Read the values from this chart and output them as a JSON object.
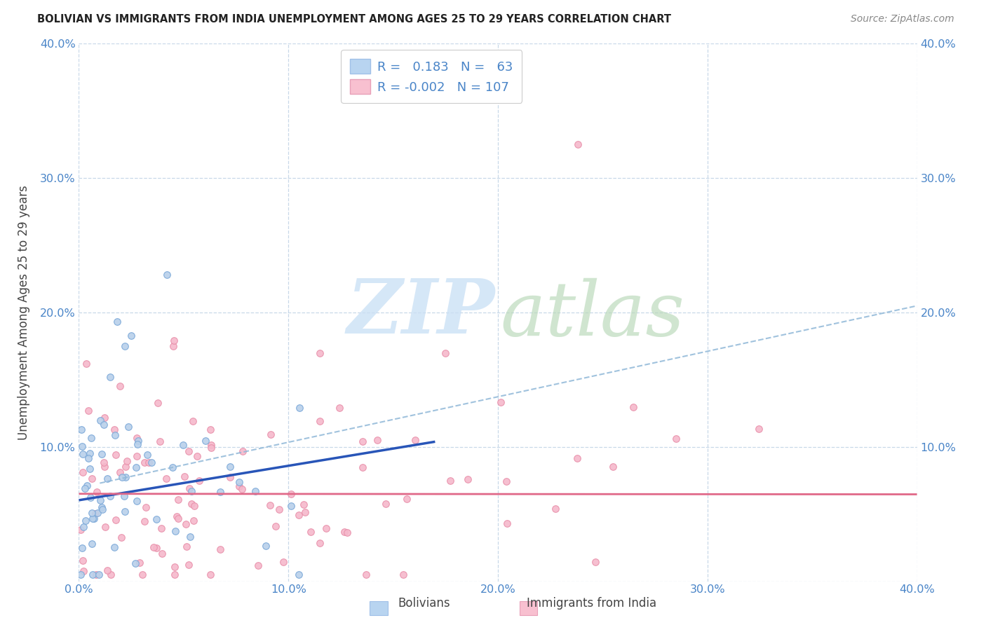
{
  "title": "BOLIVIAN VS IMMIGRANTS FROM INDIA UNEMPLOYMENT AMONG AGES 25 TO 29 YEARS CORRELATION CHART",
  "source": "Source: ZipAtlas.com",
  "ylabel": "Unemployment Among Ages 25 to 29 years",
  "xlim": [
    0.0,
    0.4
  ],
  "ylim": [
    0.0,
    0.4
  ],
  "bolivia_R": 0.183,
  "bolivia_N": 63,
  "india_R": -0.002,
  "india_N": 107,
  "bolivia_scatter_color": "#b8d0ea",
  "bolivia_edge_color": "#7aa8d8",
  "india_scatter_color": "#f5b8cb",
  "india_edge_color": "#e890aa",
  "bolivia_trend_color": "#2855b8",
  "india_trend_color": "#e06888",
  "dash_trend_color": "#90b8d8",
  "grid_color": "#c8d8e8",
  "tick_label_color": "#4a85c8",
  "title_color": "#222222",
  "source_color": "#888888",
  "watermark_zip_color": "#c8dff5",
  "watermark_atlas_color": "#b8d8b8",
  "legend_bolivia_label": "Bolivians",
  "legend_india_label": "Immigrants from India",
  "bolivia_patch_color": "#b8d4f0",
  "india_patch_color": "#f8c0d0"
}
